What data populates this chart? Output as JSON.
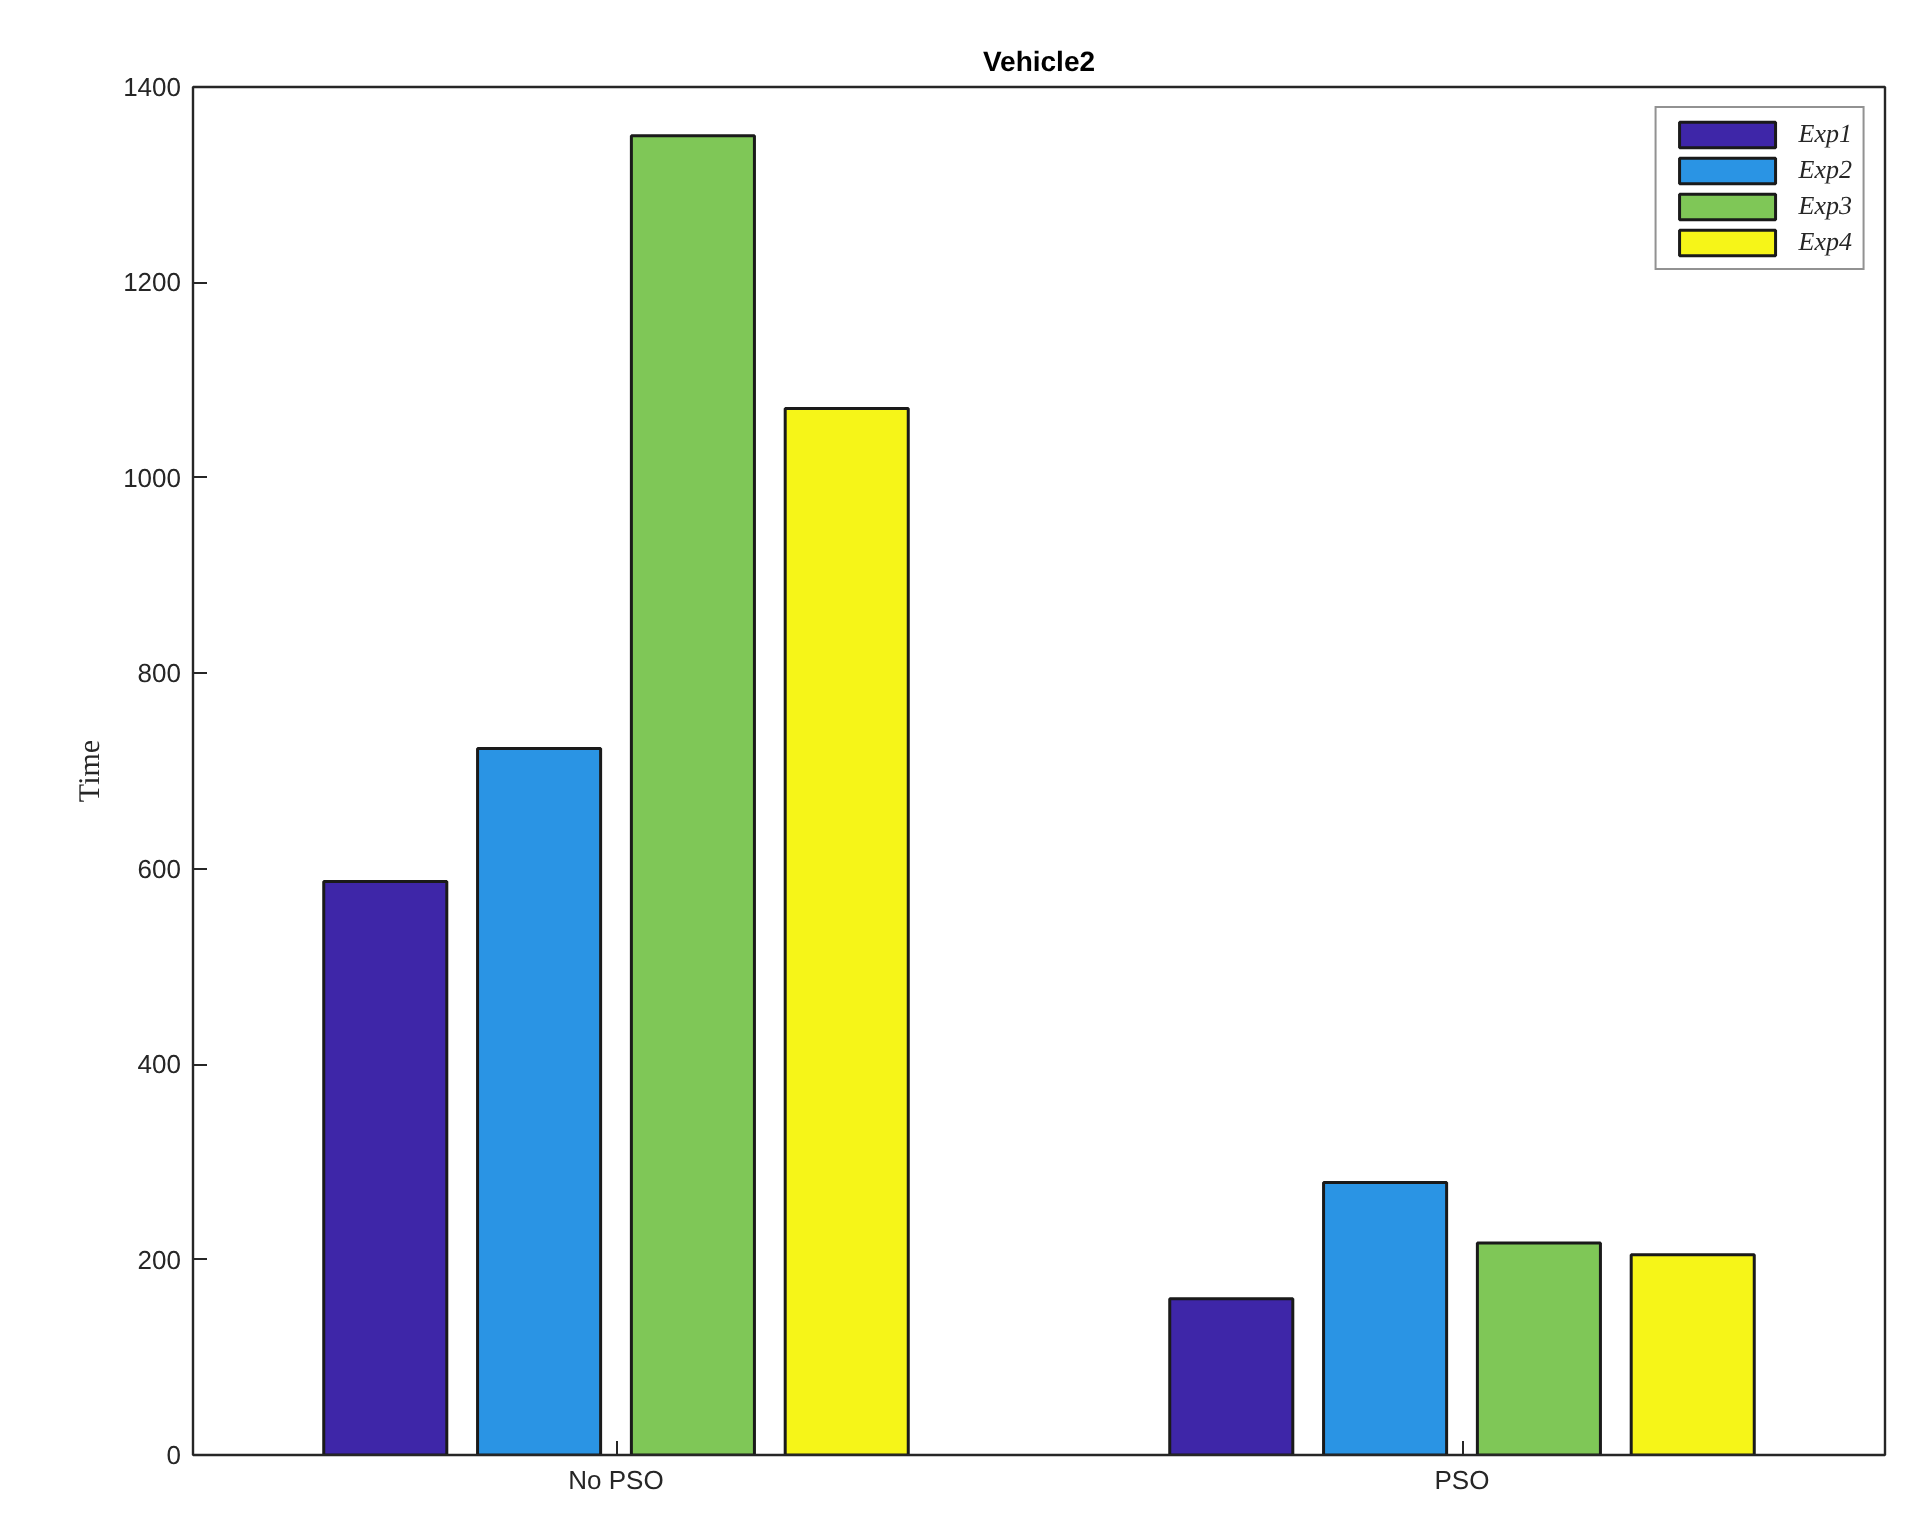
{
  "chart_data": {
    "type": "bar",
    "title": "Vehicle2",
    "ylabel": "Time",
    "categories": [
      "No PSO",
      "PSO"
    ],
    "series": [
      {
        "name": "Exp1",
        "color": "#3e26a8",
        "values": [
          587,
          160
        ]
      },
      {
        "name": "Exp2",
        "color": "#2a94e4",
        "values": [
          723,
          279
        ]
      },
      {
        "name": "Exp3",
        "color": "#7fc757",
        "values": [
          1350,
          217
        ]
      },
      {
        "name": "Exp4",
        "color": "#f6f518",
        "values": [
          1071,
          205
        ]
      }
    ],
    "ylim": [
      0,
      1400
    ],
    "yticks": [
      0,
      200,
      400,
      600,
      800,
      1000,
      1200,
      1400
    ],
    "legend": "top right",
    "grid": false
  }
}
